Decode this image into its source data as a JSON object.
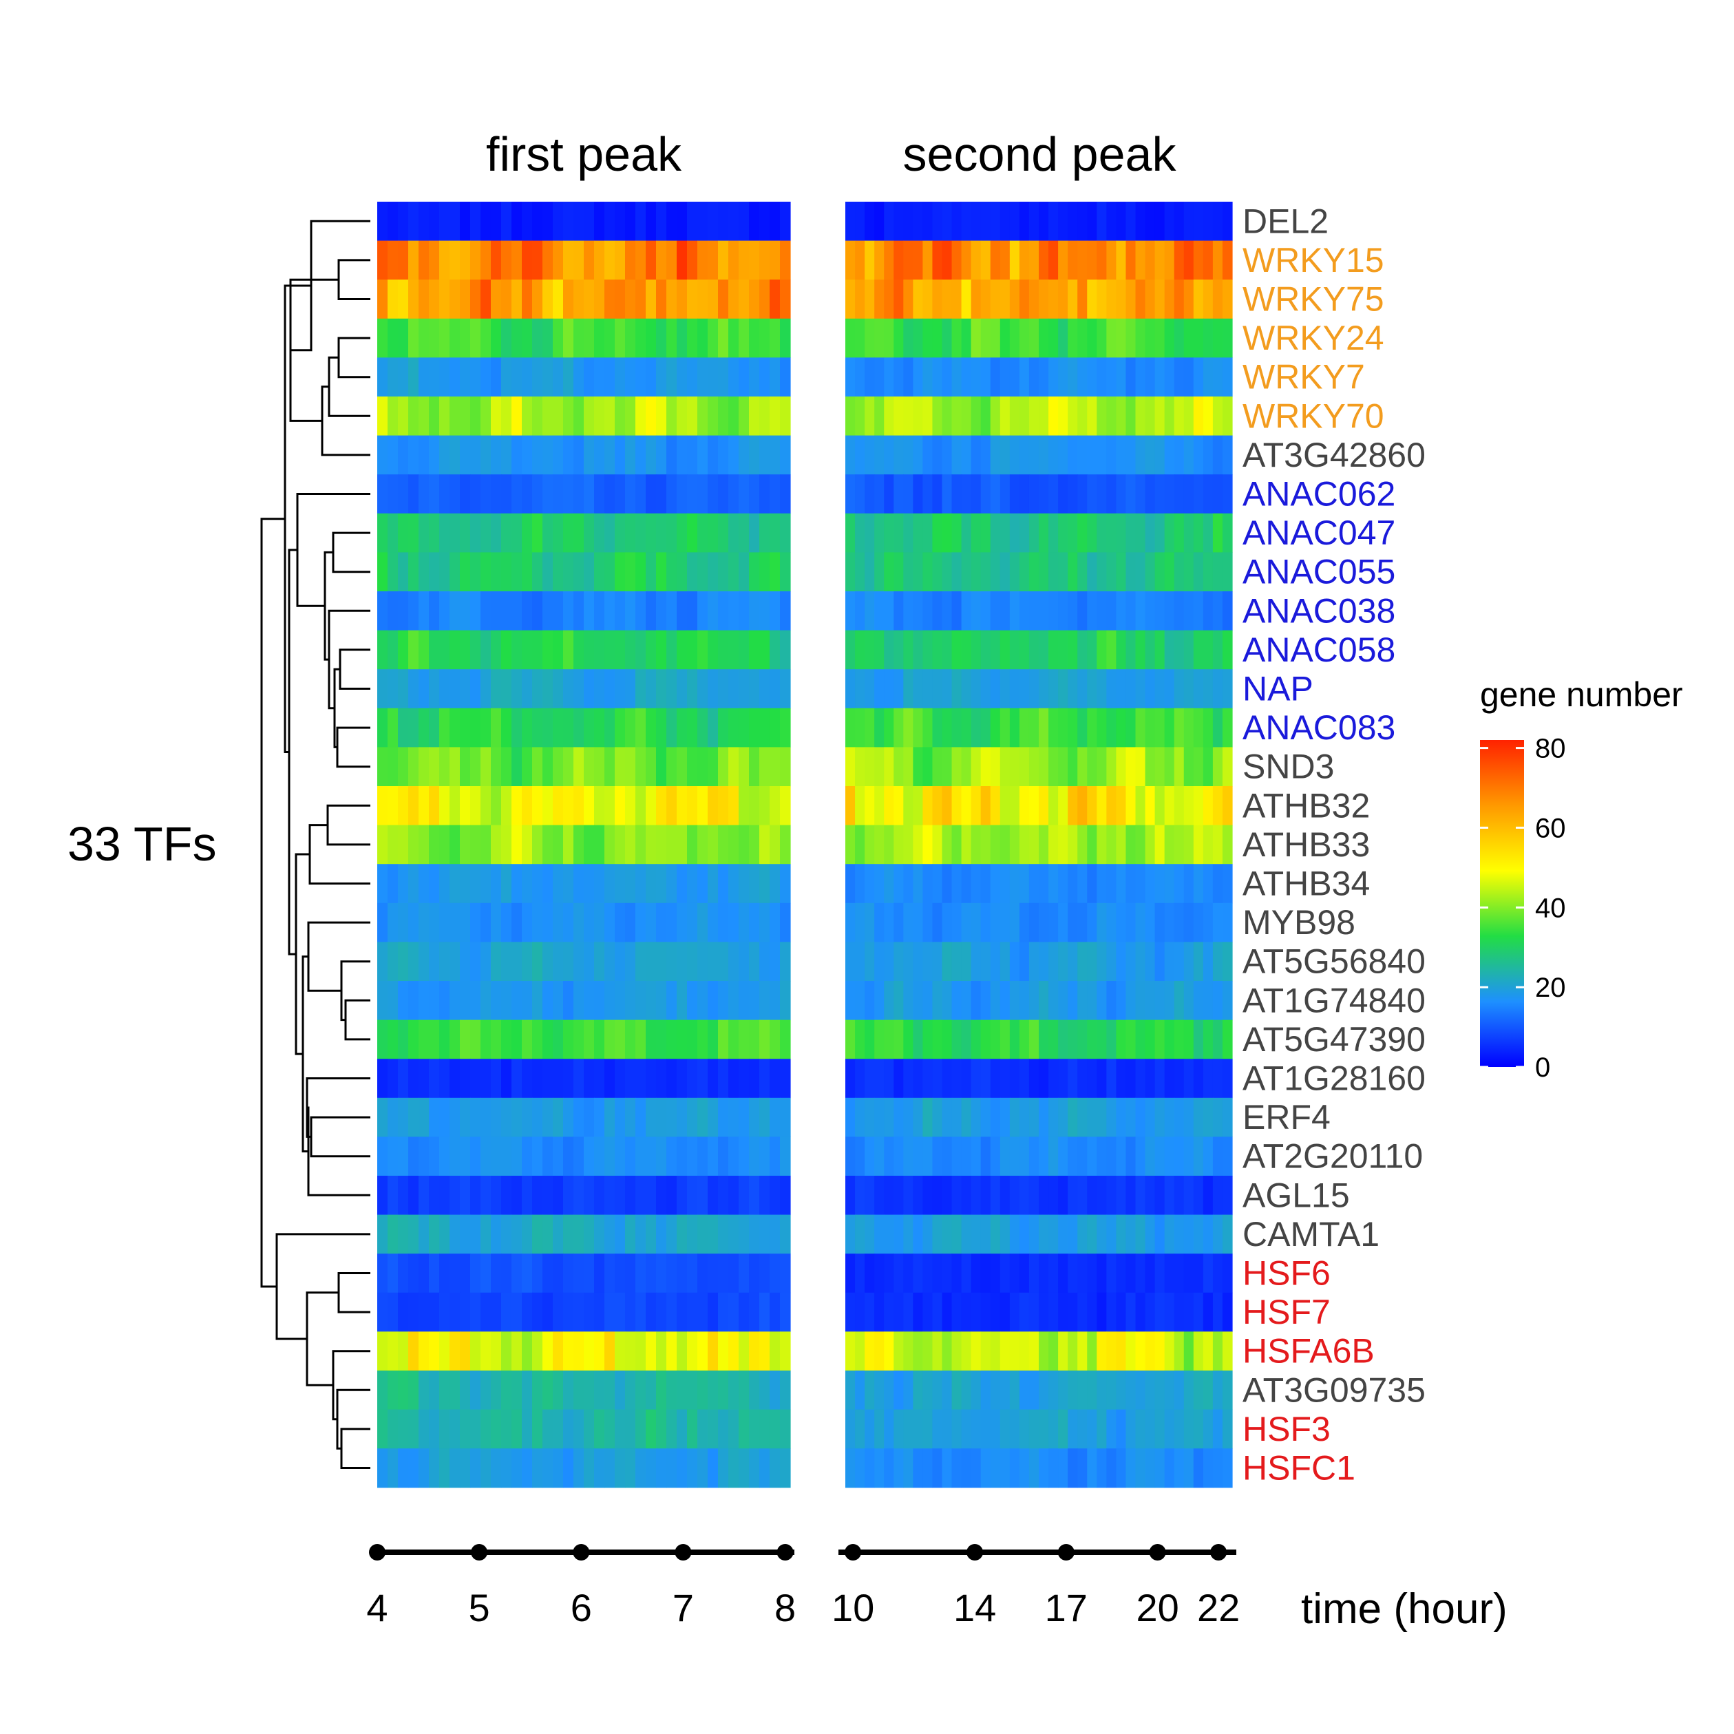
{
  "chart_data": {
    "type": "heatmap",
    "title": "",
    "y_group_label": "33 TFs",
    "xlabel": "time (hour)",
    "panels": [
      {
        "title": "first peak",
        "ticks": [
          4,
          5,
          6,
          7,
          8
        ],
        "xlim": [
          4,
          8.05
        ]
      },
      {
        "title": "second peak",
        "ticks": [
          10,
          14,
          17,
          20,
          22
        ],
        "xlim": [
          9.75,
          22.45
        ]
      }
    ],
    "tick_labels": {
      "first": [
        "4",
        "5",
        "6",
        "7",
        "8"
      ],
      "second": [
        "10",
        "14",
        "17",
        "20",
        "22"
      ]
    },
    "legend": {
      "title": "gene number",
      "min": 0,
      "max": 82,
      "ticks": [
        0,
        20,
        40,
        60,
        80
      ],
      "position": "right"
    },
    "colorscale": [
      "#0000ff",
      "#1e90ff",
      "#22dd44",
      "#ffff00",
      "#ff9900",
      "#ff2200"
    ],
    "label_colors": {
      "default": "#444444",
      "WRKY": "#f39c1e",
      "NAC": "#1a1adb",
      "HSF": "#e41a1c"
    },
    "rows": [
      {
        "name": "DEL2",
        "group": "default",
        "first": 3,
        "second": 3
      },
      {
        "name": "WRKY15",
        "group": "WRKY",
        "first": 68,
        "second": 68
      },
      {
        "name": "WRKY75",
        "group": "WRKY",
        "first": 65,
        "second": 64
      },
      {
        "name": "WRKY24",
        "group": "WRKY",
        "first": 34,
        "second": 34
      },
      {
        "name": "WRKY7",
        "group": "WRKY",
        "first": 18,
        "second": 16
      },
      {
        "name": "WRKY70",
        "group": "WRKY",
        "first": 43,
        "second": 43
      },
      {
        "name": "AT3G42860",
        "group": "default",
        "first": 17,
        "second": 17
      },
      {
        "name": "ANAC062",
        "group": "NAC",
        "first": 11,
        "second": 10
      },
      {
        "name": "ANAC047",
        "group": "NAC",
        "first": 28,
        "second": 28
      },
      {
        "name": "ANAC055",
        "group": "NAC",
        "first": 29,
        "second": 27
      },
      {
        "name": "ANAC038",
        "group": "NAC",
        "first": 15,
        "second": 15
      },
      {
        "name": "ANAC058",
        "group": "NAC",
        "first": 31,
        "second": 30
      },
      {
        "name": "NAP",
        "group": "NAC",
        "first": 20,
        "second": 19
      },
      {
        "name": "ANAC083",
        "group": "NAC",
        "first": 32,
        "second": 34
      },
      {
        "name": "SND3",
        "group": "default",
        "first": 38,
        "second": 41
      },
      {
        "name": "ATHB32",
        "group": "default",
        "first": 50,
        "second": 52
      },
      {
        "name": "ATHB33",
        "group": "default",
        "first": 41,
        "second": 42
      },
      {
        "name": "ATHB34",
        "group": "default",
        "first": 18,
        "second": 16
      },
      {
        "name": "MYB98",
        "group": "default",
        "first": 17,
        "second": 16
      },
      {
        "name": "AT5G56840",
        "group": "default",
        "first": 20,
        "second": 19
      },
      {
        "name": "AT1G74840",
        "group": "default",
        "first": 18,
        "second": 18
      },
      {
        "name": "AT5G47390",
        "group": "default",
        "first": 34,
        "second": 32
      },
      {
        "name": "AT1G28160",
        "group": "default",
        "first": 5,
        "second": 5
      },
      {
        "name": "ERF4",
        "group": "default",
        "first": 19,
        "second": 19
      },
      {
        "name": "AT2G20110",
        "group": "default",
        "first": 16,
        "second": 16
      },
      {
        "name": "AGL15",
        "group": "default",
        "first": 7,
        "second": 6
      },
      {
        "name": "CAMTA1",
        "group": "default",
        "first": 21,
        "second": 19
      },
      {
        "name": "HSF6",
        "group": "HSF",
        "first": 9,
        "second": 5
      },
      {
        "name": "HSF7",
        "group": "HSF",
        "first": 8,
        "second": 5
      },
      {
        "name": "HSFA6B",
        "group": "HSF",
        "first": 48,
        "second": 46
      },
      {
        "name": "AT3G09735",
        "group": "default",
        "first": 24,
        "second": 20
      },
      {
        "name": "HSF3",
        "group": "HSF",
        "first": 24,
        "second": 20
      },
      {
        "name": "HSFC1",
        "group": "HSF",
        "first": 19,
        "second": 16
      }
    ]
  }
}
